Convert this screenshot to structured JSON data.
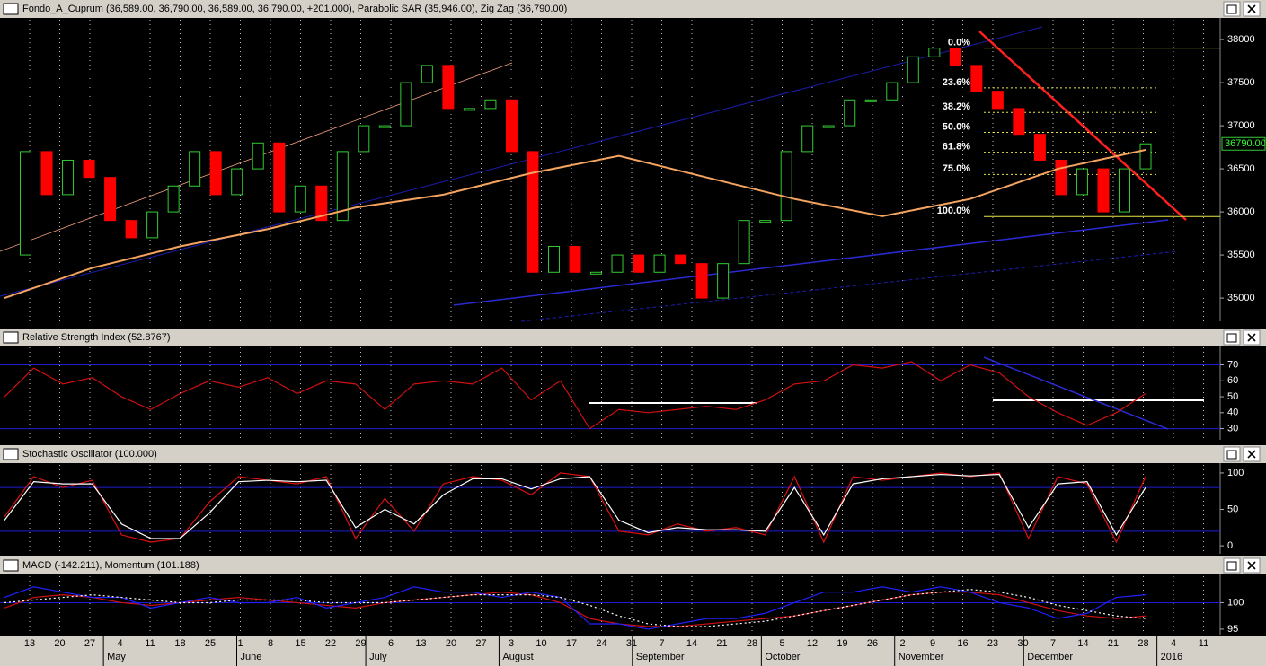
{
  "chart_data": [
    {
      "type": "candlestick",
      "title": "Fondo_A_Cuprum (36,589.00, 36,790.00, 36,589.00, 36,790.00, +201.000), Parabolic SAR (35,946.00), Zig Zag (36,790.00)",
      "ylim": [
        34730,
        38230
      ],
      "yticks": [
        35000,
        35500,
        36000,
        36500,
        37000,
        37500,
        38000
      ],
      "values": [
        35500,
        36700,
        36200,
        36600,
        36400,
        35900,
        35700,
        36000,
        36300,
        36700,
        36200,
        36500,
        36800,
        36000,
        36300,
        35900,
        36700,
        37000,
        37000,
        37500,
        37700,
        37200,
        37200,
        37300,
        36700,
        35300,
        35600,
        35300,
        35300,
        35500,
        35300,
        35500,
        35400,
        35000,
        35400,
        35900,
        35900,
        36700,
        37000,
        37000,
        37300,
        37300,
        37500,
        37800,
        37900,
        37700,
        37400,
        37200,
        36900,
        36600,
        36200,
        36500,
        36000,
        36500,
        36790
      ],
      "up_color": "#33cc33",
      "down_color": "#ff0000",
      "moving_average": {
        "color": "#f4a460",
        "values": [
          35000,
          35350,
          35600,
          35800,
          36050,
          36200,
          36450,
          36650,
          36400,
          36150,
          35950,
          36150,
          36500,
          36720
        ]
      },
      "fib": [
        {
          "label": "0.0%",
          "value": 37900
        },
        {
          "label": "23.6%",
          "value": 37439
        },
        {
          "label": "38.2%",
          "value": 37154
        },
        {
          "label": "50.0%",
          "value": 36923
        },
        {
          "label": "61.8%",
          "value": 36692
        },
        {
          "label": "75.0%",
          "value": 36435
        },
        {
          "label": "100.0%",
          "value": 35946
        }
      ],
      "last": {
        "value": 36790,
        "label": "36790.00"
      }
    },
    {
      "type": "line",
      "title": "Relative Strength Index (52.8767)",
      "ylim": [
        23,
        81
      ],
      "yticks": [
        30,
        40,
        50,
        60,
        70
      ],
      "bands": [
        30,
        70
      ],
      "series": [
        {
          "color": "#d01010",
          "values": [
            50,
            68,
            58,
            62,
            50,
            42,
            52,
            60,
            56,
            62,
            52,
            60,
            58,
            42,
            58,
            60,
            58,
            68,
            48,
            60,
            30,
            42,
            40,
            42,
            44,
            42,
            48,
            58,
            60,
            70,
            68,
            72,
            60,
            70,
            65,
            50,
            40,
            32,
            40,
            52
          ]
        }
      ]
    },
    {
      "type": "line",
      "title": "Stochastic Oscillator (100.000)",
      "ylim": [
        -11,
        111
      ],
      "yticks": [
        0,
        50,
        100
      ],
      "bands": [
        20,
        80
      ],
      "series": [
        {
          "color": "#e01010",
          "values": [
            40,
            95,
            80,
            90,
            15,
            5,
            10,
            60,
            95,
            90,
            85,
            95,
            10,
            65,
            20,
            85,
            95,
            90,
            70,
            100,
            95,
            20,
            15,
            30,
            20,
            25,
            15,
            95,
            5,
            95,
            90,
            95,
            100,
            95,
            100,
            10,
            95,
            85,
            5,
            95
          ]
        },
        {
          "color": "#ffffff",
          "values": [
            35,
            88,
            85,
            85,
            30,
            10,
            10,
            45,
            88,
            90,
            88,
            90,
            25,
            50,
            30,
            70,
            92,
            92,
            78,
            92,
            95,
            35,
            18,
            25,
            22,
            22,
            20,
            80,
            15,
            85,
            92,
            95,
            98,
            96,
            98,
            25,
            85,
            88,
            15,
            80
          ]
        }
      ]
    },
    {
      "type": "line",
      "title": "MACD (-142.211), Momentum (101.188)",
      "ylim": [
        93.8,
        105
      ],
      "yticks": [
        95,
        100
      ],
      "bands": [
        100
      ],
      "series": [
        {
          "color": "#d01010",
          "values": [
            99,
            101,
            101.5,
            101,
            100,
            99.5,
            100,
            100.5,
            101,
            100.5,
            100,
            99.5,
            99,
            100,
            100.5,
            101,
            101.5,
            102,
            101.5,
            100,
            97,
            96,
            95.5,
            95.5,
            96,
            96.5,
            97,
            97.5,
            98.5,
            99.5,
            100.5,
            101.5,
            102,
            102,
            101.5,
            100,
            98.5,
            97.5,
            97,
            97.5
          ]
        },
        {
          "color": "#2020ff",
          "values": [
            101,
            103,
            102,
            101,
            101,
            99,
            100,
            101,
            100,
            100,
            101,
            99,
            100,
            101,
            103,
            102,
            102,
            101,
            102,
            101,
            96,
            96,
            95,
            96,
            97,
            97,
            98,
            100,
            102,
            102,
            103,
            102,
            103,
            102,
            100,
            99,
            97,
            98,
            101,
            101.5
          ]
        },
        {
          "color": "#ffffff",
          "dashed": true,
          "values": [
            100,
            100.5,
            101,
            101.5,
            101,
            100.5,
            100,
            100,
            100.5,
            100.5,
            100.5,
            100,
            100,
            100,
            100.5,
            101,
            101.5,
            101.5,
            101.5,
            101,
            99.5,
            97.5,
            96,
            95.5,
            95.5,
            96,
            96.5,
            97.5,
            98.5,
            99.5,
            100.5,
            101.5,
            102,
            102.5,
            102,
            101,
            99.5,
            98.5,
            97.5,
            97
          ]
        }
      ]
    }
  ],
  "x_axis": {
    "days": [
      13,
      20,
      27,
      4,
      11,
      18,
      25,
      1,
      8,
      15,
      22,
      29,
      6,
      13,
      20,
      27,
      3,
      10,
      17,
      24,
      31,
      7,
      14,
      21,
      28,
      5,
      12,
      19,
      26,
      2,
      9,
      16,
      23,
      30,
      7,
      14,
      21,
      28,
      4,
      11
    ],
    "months": [
      "May",
      "June",
      "July",
      "August",
      "September",
      "October",
      "November",
      "December",
      "2016"
    ]
  }
}
